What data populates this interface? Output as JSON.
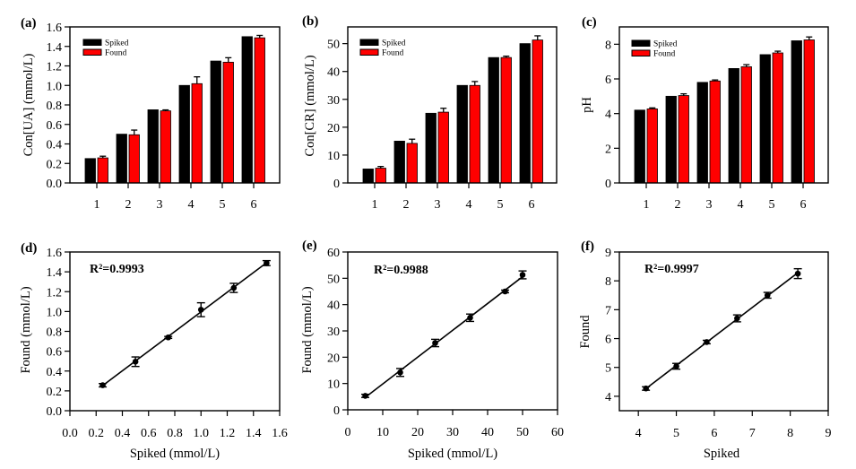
{
  "figure": {
    "background": "#ffffff",
    "colors": {
      "spiked": "#000000",
      "found": "#ff0000",
      "axis": "#000000"
    }
  },
  "chart_data": [
    {
      "panel": "a",
      "type": "bar",
      "label": "(a)",
      "title": "",
      "xlabel": "",
      "ylabel": "Con[UA] (mmol/L)",
      "categories": [
        "1",
        "2",
        "3",
        "4",
        "5",
        "6"
      ],
      "ylim": [
        0,
        1.6
      ],
      "yticks": [
        "0.0",
        "0.2",
        "0.4",
        "0.6",
        "0.8",
        "1.0",
        "1.2",
        "1.4",
        "1.6"
      ],
      "grid": false,
      "legend": "top-left",
      "series": [
        {
          "name": "Spiked",
          "color": "#000000",
          "values": [
            0.25,
            0.5,
            0.75,
            1.0,
            1.25,
            1.5
          ]
        },
        {
          "name": "Found",
          "color": "#ff0000",
          "values": [
            0.257,
            0.494,
            0.739,
            1.018,
            1.238,
            1.488
          ],
          "errors": [
            0.017,
            0.048,
            0.01,
            0.07,
            0.046,
            0.025
          ]
        }
      ]
    },
    {
      "panel": "b",
      "type": "bar",
      "label": "(b)",
      "title": "",
      "xlabel": "",
      "ylabel": "Con[CR] (mmol/L)",
      "categories": [
        "1",
        "2",
        "3",
        "4",
        "5",
        "6"
      ],
      "ylim": [
        0,
        56
      ],
      "yticks": [
        "0",
        "10",
        "20",
        "30",
        "40",
        "50"
      ],
      "grid": false,
      "legend": "top-left",
      "series": [
        {
          "name": "Spiked",
          "color": "#000000",
          "values": [
            5,
            15,
            25,
            35,
            45,
            50
          ]
        },
        {
          "name": "Found",
          "color": "#ff0000",
          "values": [
            5.3,
            14.2,
            25.4,
            35.0,
            45.0,
            51.3
          ],
          "errors": [
            0.6,
            1.5,
            1.4,
            1.4,
            0.5,
            1.5
          ]
        }
      ]
    },
    {
      "panel": "c",
      "type": "bar",
      "label": "(c)",
      "title": "",
      "xlabel": "",
      "ylabel": "pH",
      "categories": [
        "1",
        "2",
        "3",
        "4",
        "5",
        "6"
      ],
      "ylim": [
        0,
        9
      ],
      "yticks": [
        "0",
        "2",
        "4",
        "6",
        "8"
      ],
      "grid": false,
      "legend": "top-left",
      "series": [
        {
          "name": "Spiked",
          "color": "#000000",
          "values": [
            4.2,
            5.0,
            5.8,
            6.6,
            7.4,
            8.2
          ]
        },
        {
          "name": "Found",
          "color": "#ff0000",
          "values": [
            4.27,
            5.04,
            5.88,
            6.7,
            7.5,
            8.25
          ],
          "errors": [
            0.06,
            0.1,
            0.06,
            0.12,
            0.1,
            0.17
          ]
        }
      ]
    },
    {
      "panel": "d",
      "type": "scatter",
      "label": "(d)",
      "title": "",
      "xlabel": "Spiked (mmol/L)",
      "ylabel": "Found (mmol/L)",
      "annotation": "R²=0.9993",
      "fit": "linear",
      "xlim": [
        0,
        1.6
      ],
      "ylim": [
        0,
        1.6
      ],
      "xticks": [
        "0.0",
        "0.2",
        "0.4",
        "0.6",
        "0.8",
        "1.0",
        "1.2",
        "1.4",
        "1.6"
      ],
      "yticks": [
        "0.0",
        "0.2",
        "0.4",
        "0.6",
        "0.8",
        "1.0",
        "1.2",
        "1.4",
        "1.6"
      ],
      "grid": false,
      "x": [
        0.25,
        0.5,
        0.75,
        1.0,
        1.25,
        1.5
      ],
      "y": [
        0.257,
        0.494,
        0.739,
        1.018,
        1.238,
        1.488
      ],
      "yerr": [
        0.017,
        0.048,
        0.01,
        0.07,
        0.046,
        0.025
      ]
    },
    {
      "panel": "e",
      "type": "scatter",
      "label": "(e)",
      "title": "",
      "xlabel": "Spiked (mmol/L)",
      "ylabel": "Found (mmol/L)",
      "annotation": "R²=0.9988",
      "fit": "linear",
      "xlim": [
        0,
        60
      ],
      "ylim": [
        0,
        60
      ],
      "xticks": [
        "0",
        "10",
        "20",
        "30",
        "40",
        "50",
        "60"
      ],
      "yticks": [
        "0",
        "10",
        "20",
        "30",
        "40",
        "50",
        "60"
      ],
      "grid": false,
      "x": [
        5,
        15,
        25,
        35,
        45,
        50
      ],
      "y": [
        5.3,
        14.2,
        25.4,
        35.0,
        45.0,
        51.3
      ],
      "yerr": [
        0.6,
        1.5,
        1.4,
        1.4,
        0.5,
        1.5
      ]
    },
    {
      "panel": "f",
      "type": "scatter",
      "label": "(f)",
      "title": "",
      "xlabel": "Spiked",
      "ylabel": "Found",
      "annotation": "R²=0.9997",
      "fit": "linear",
      "xlim": [
        3.5,
        9
      ],
      "ylim": [
        3.5,
        9
      ],
      "xticks": [
        "4",
        "5",
        "6",
        "7",
        "8",
        "9"
      ],
      "yticks": [
        "4",
        "5",
        "6",
        "7",
        "8",
        "9"
      ],
      "grid": false,
      "x": [
        4.2,
        5.0,
        5.8,
        6.6,
        7.4,
        8.2
      ],
      "y": [
        4.27,
        5.04,
        5.88,
        6.7,
        7.5,
        8.25
      ],
      "yerr": [
        0.06,
        0.1,
        0.06,
        0.12,
        0.1,
        0.17
      ]
    }
  ]
}
